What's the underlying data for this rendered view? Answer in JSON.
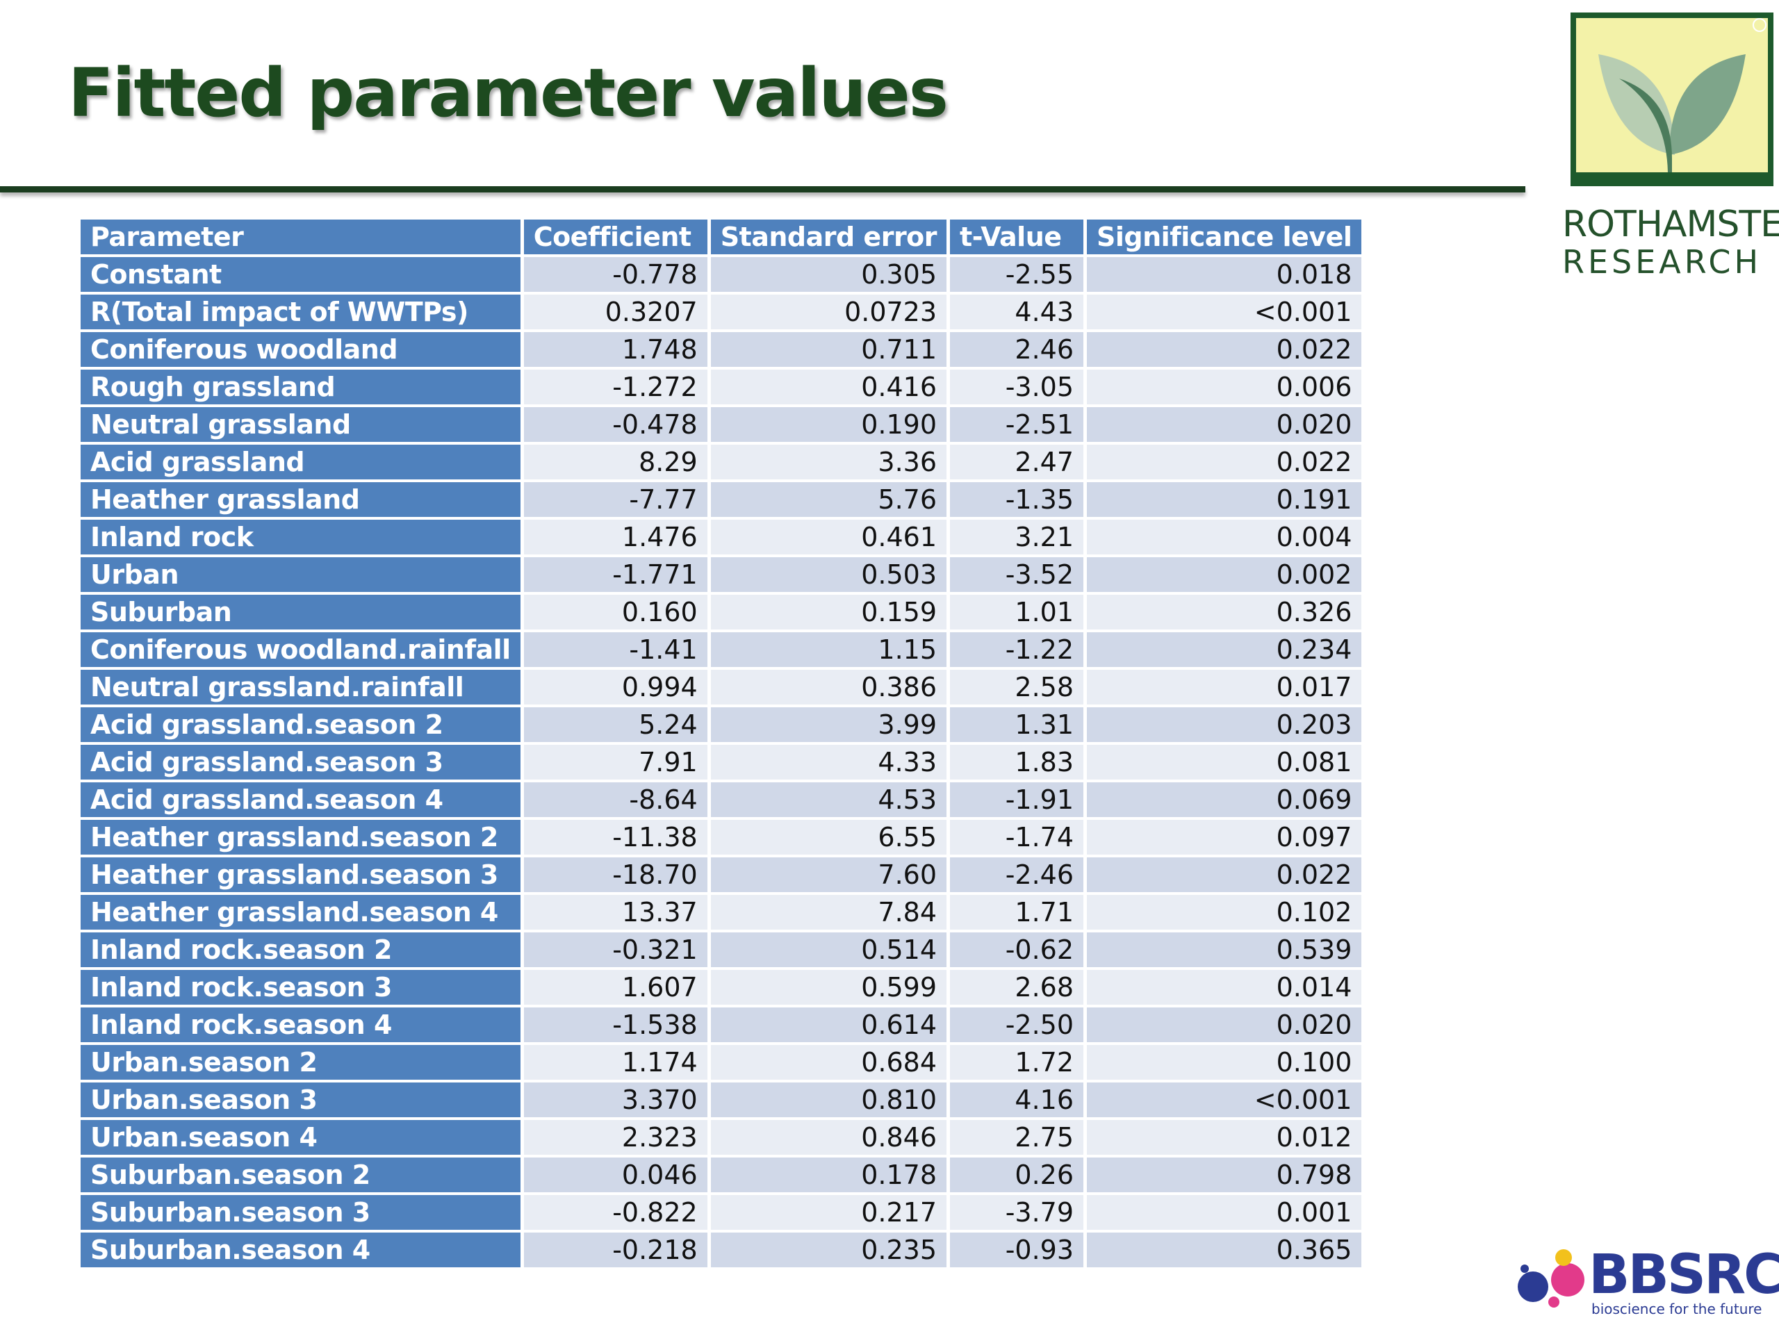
{
  "title": "Fitted parameter values",
  "logos": {
    "rothamsted_line1": "ROTHAMSTED",
    "rothamsted_line2": "RESEARCH",
    "bbsrc_name": "BBSRC",
    "bbsrc_tagline": "bioscience for the future"
  },
  "colors": {
    "title": "#1d4a1f",
    "header_fill": "#4f81bd",
    "row_fill": "#d0d8e8",
    "row_fill_alt": "#e9edf4"
  },
  "table": {
    "headers": [
      "Parameter",
      "Coefficient",
      "Standard error",
      "t-Value",
      "Significance level"
    ],
    "rows": [
      [
        "Constant",
        "-0.778",
        "0.305",
        "-2.55",
        "0.018"
      ],
      [
        "R(Total impact of WWTPs)",
        "0.3207",
        "0.0723",
        "4.43",
        "<0.001"
      ],
      [
        "Coniferous woodland",
        "1.748",
        "0.711",
        "2.46",
        "0.022"
      ],
      [
        "Rough grassland",
        "-1.272",
        "0.416",
        "-3.05",
        "0.006"
      ],
      [
        "Neutral grassland",
        "-0.478",
        "0.190",
        "-2.51",
        "0.020"
      ],
      [
        "Acid grassland",
        "8.29",
        "3.36",
        "2.47",
        "0.022"
      ],
      [
        "Heather grassland",
        "-7.77",
        "5.76",
        "-1.35",
        "0.191"
      ],
      [
        "Inland rock",
        "1.476",
        "0.461",
        "3.21",
        "0.004"
      ],
      [
        "Urban",
        "-1.771",
        "0.503",
        "-3.52",
        "0.002"
      ],
      [
        "Suburban",
        "0.160",
        "0.159",
        "1.01",
        "0.326"
      ],
      [
        "Coniferous woodland.rainfall",
        "-1.41",
        "1.15",
        "-1.22",
        "0.234"
      ],
      [
        "Neutral grassland.rainfall",
        "0.994",
        "0.386",
        "2.58",
        "0.017"
      ],
      [
        "Acid grassland.season 2",
        "5.24",
        "3.99",
        "1.31",
        "0.203"
      ],
      [
        "Acid grassland.season 3",
        "7.91",
        "4.33",
        "1.83",
        "0.081"
      ],
      [
        "Acid grassland.season 4",
        "-8.64",
        "4.53",
        "-1.91",
        "0.069"
      ],
      [
        "Heather grassland.season 2",
        "-11.38",
        "6.55",
        "-1.74",
        "0.097"
      ],
      [
        "Heather grassland.season 3",
        "-18.70",
        "7.60",
        "-2.46",
        "0.022"
      ],
      [
        "Heather grassland.season 4",
        "13.37",
        "7.84",
        "1.71",
        "0.102"
      ],
      [
        "Inland rock.season 2",
        "-0.321",
        "0.514",
        "-0.62",
        "0.539"
      ],
      [
        "Inland rock.season 3",
        "1.607",
        "0.599",
        "2.68",
        "0.014"
      ],
      [
        "Inland rock.season 4",
        "-1.538",
        "0.614",
        "-2.50",
        "0.020"
      ],
      [
        "Urban.season 2",
        "1.174",
        "0.684",
        "1.72",
        "0.100"
      ],
      [
        "Urban.season 3",
        "3.370",
        "0.810",
        "4.16",
        "<0.001"
      ],
      [
        "Urban.season 4",
        "2.323",
        "0.846",
        "2.75",
        "0.012"
      ],
      [
        "Suburban.season 2",
        "0.046",
        "0.178",
        "0.26",
        "0.798"
      ],
      [
        "Suburban.season 3",
        "-0.822",
        "0.217",
        "-3.79",
        "0.001"
      ],
      [
        "Suburban.season 4",
        "-0.218",
        "0.235",
        "-0.93",
        "0.365"
      ]
    ]
  }
}
